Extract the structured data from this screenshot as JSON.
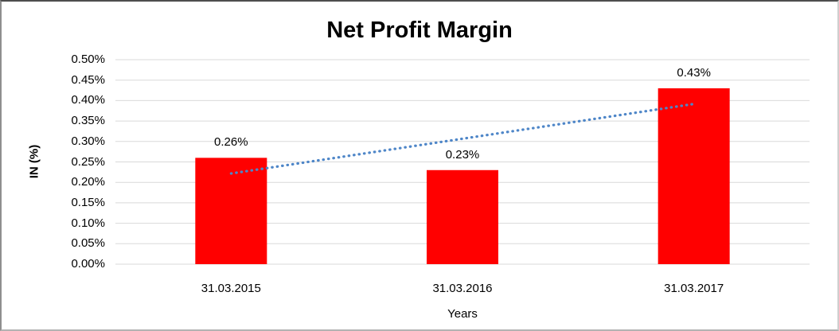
{
  "chart_data": {
    "type": "bar",
    "title": "Net Profit Margin",
    "xlabel": "Years",
    "ylabel": "IN (%)",
    "categories": [
      "31.03.2015",
      "31.03.2016",
      "31.03.2017"
    ],
    "values": [
      0.26,
      0.23,
      0.43
    ],
    "data_labels": [
      "0.26%",
      "0.23%",
      "0.43%"
    ],
    "ylim": [
      0,
      0.5
    ],
    "ytick_step": 0.05,
    "ytick_labels": [
      "0.00%",
      "0.05%",
      "0.10%",
      "0.15%",
      "0.20%",
      "0.25%",
      "0.30%",
      "0.35%",
      "0.40%",
      "0.45%",
      "0.50%"
    ],
    "grid": true,
    "legend": "none",
    "trendline": {
      "type": "linear",
      "style": "dotted",
      "start_value": 0.2217,
      "end_value": 0.3917
    },
    "colors": {
      "bar": "#ff0000",
      "trendline": "#4e86c8",
      "gridline": "#d9d9d9",
      "text": "#000000",
      "background": "#ffffff"
    }
  }
}
